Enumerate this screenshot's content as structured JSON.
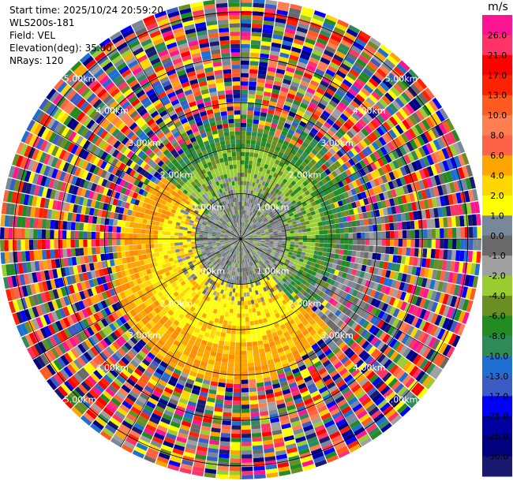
{
  "header": {
    "start_time": "Start time: 2025/10/24 20:59:20",
    "station": "WLS200s-181",
    "field": "Field: VEL",
    "elevation": "Elevation(deg): 35.00",
    "nrays": "NRays: 120"
  },
  "colorbar": {
    "unit": "m/s",
    "levels": [
      "26.0",
      "21.0",
      "17.0",
      "13.0",
      "10.0",
      "8.0",
      "6.0",
      "4.0",
      "2.0",
      "1.0",
      "0.0",
      "-1.0",
      "-2.0",
      "-4.0",
      "-6.0",
      "-8.0",
      "-10.0",
      "-13.0",
      "-17.0",
      "-21.0",
      "-26.0",
      "-30.0"
    ],
    "colors": [
      "#ff1493",
      "#ff3366",
      "#ff0000",
      "#ff2200",
      "#ff5a1f",
      "#ff7f50",
      "#ff6347",
      "#ffa500",
      "#ffd700",
      "#ffff00",
      "#778899",
      "#696969",
      "#a0a0a0",
      "#9acd32",
      "#6b8e23",
      "#228b22",
      "#2e8b57",
      "#1e6fd0",
      "#3b5cc4",
      "#0000ff",
      "#0000a0",
      "#000080",
      "#191970"
    ]
  },
  "chart_data": {
    "type": "ppi",
    "field": "VEL",
    "rays": 120,
    "max_range_km": 5.0,
    "range_rings_km": [
      1.0,
      2.0,
      3.0,
      4.0,
      5.0
    ],
    "ring_labels": [
      "1.00km",
      "2.00km",
      "3.00km",
      "4.00km",
      "5.00km"
    ],
    "value_range": [
      -30.0,
      26.0
    ],
    "pattern_description_bands": [
      {
        "range_km": [
          0,
          1.0
        ],
        "dominant": "gray (near 0 m/s)"
      },
      {
        "range_km": [
          1.0,
          2.2
        ],
        "sector": "north-east",
        "dominant": "green / yellow-green (-1 to -6 m/s)"
      },
      {
        "range_km": [
          1.0,
          2.6
        ],
        "sector": "south-west",
        "dominant": "yellow / orange (2 to 6 m/s)"
      },
      {
        "range_km": [
          2.6,
          5.0
        ],
        "dominant": "noise (mixed colours)"
      }
    ]
  }
}
